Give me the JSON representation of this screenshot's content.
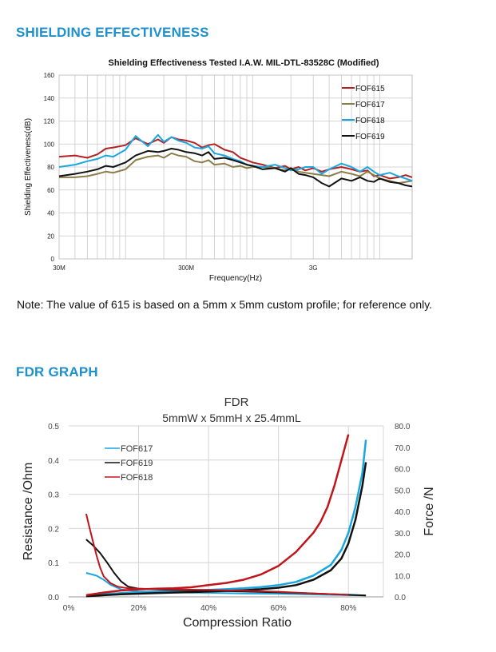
{
  "sections": {
    "shielding_heading": "SHIELDING EFFECTIVENESS",
    "note": "Note: The value of 615 is based on a 5mm x 5mm custom profile; for reference only.",
    "fdr_heading": "FDR GRAPH"
  },
  "chart_data": [
    {
      "type": "line",
      "title": "Shielding Effectiveness Tested I.A.W. MIL-DTL-83528C (Modified)",
      "xlabel": "Frequency(Hz)",
      "ylabel": "Shielding Effectiveness(dB)",
      "xscale": "log",
      "xlim": [
        30000000,
        18000000000
      ],
      "ylim": [
        0,
        160
      ],
      "xticks": [
        {
          "value": 30000000,
          "label": "30M"
        },
        {
          "value": 300000000,
          "label": "300M"
        },
        {
          "value": 3000000000,
          "label": "3G"
        }
      ],
      "yticks": [
        0,
        20,
        40,
        60,
        80,
        100,
        120,
        140,
        160
      ],
      "grid": true,
      "legend_position": "top-right",
      "series": [
        {
          "name": "FOF615",
          "color": "#b22222",
          "x": [
            30,
            40,
            50,
            60,
            70,
            80,
            100,
            120,
            150,
            180,
            200,
            230,
            260,
            300,
            350,
            400,
            450,
            500,
            600,
            700,
            800,
            900,
            1000,
            1200,
            1500,
            1800,
            2000,
            2300,
            2600,
            3000,
            3500,
            4000,
            5000,
            6000,
            7000,
            8000,
            9000,
            10000,
            12000,
            14000,
            16000,
            18000
          ],
          "y": [
            89,
            90,
            88,
            91,
            96,
            97,
            99,
            105,
            100,
            104,
            101,
            106,
            104,
            103,
            101,
            97,
            99,
            100,
            95,
            93,
            88,
            86,
            84,
            82,
            79,
            81,
            78,
            80,
            77,
            79,
            76,
            78,
            80,
            78,
            76,
            77,
            72,
            73,
            70,
            71,
            73,
            71
          ]
        },
        {
          "name": "FOF617",
          "color": "#8b7d4a",
          "x": [
            30,
            40,
            50,
            60,
            70,
            80,
            100,
            120,
            150,
            180,
            200,
            230,
            260,
            300,
            350,
            400,
            450,
            500,
            600,
            700,
            800,
            900,
            1000,
            1200,
            1500,
            1800,
            2000,
            2300,
            2600,
            3000,
            3500,
            4000,
            5000,
            6000,
            7000,
            8000,
            9000,
            10000,
            12000,
            14000,
            16000,
            18000
          ],
          "y": [
            71,
            71,
            72,
            74,
            76,
            75,
            78,
            86,
            89,
            90,
            88,
            92,
            90,
            89,
            85,
            84,
            86,
            82,
            83,
            80,
            81,
            79,
            80,
            80,
            79,
            77,
            79,
            76,
            75,
            74,
            73,
            72,
            76,
            74,
            72,
            76,
            73,
            70,
            68,
            66,
            67,
            68
          ]
        },
        {
          "name": "FOF618",
          "color": "#1aa7e0",
          "x": [
            30,
            40,
            50,
            60,
            70,
            80,
            100,
            120,
            150,
            180,
            200,
            230,
            260,
            300,
            350,
            400,
            450,
            500,
            600,
            700,
            800,
            900,
            1000,
            1200,
            1500,
            1800,
            2000,
            2300,
            2600,
            3000,
            3500,
            4000,
            5000,
            6000,
            7000,
            8000,
            9000,
            10000,
            12000,
            14000,
            16000,
            18000
          ],
          "y": [
            80,
            82,
            85,
            87,
            90,
            89,
            95,
            107,
            98,
            108,
            102,
            106,
            103,
            101,
            97,
            96,
            98,
            92,
            90,
            87,
            85,
            82,
            81,
            80,
            82,
            79,
            77,
            78,
            80,
            80,
            74,
            78,
            83,
            80,
            76,
            80,
            76,
            73,
            75,
            72,
            70,
            68
          ]
        },
        {
          "name": "FOF619",
          "color": "#111111",
          "x": [
            30,
            40,
            50,
            60,
            70,
            80,
            100,
            120,
            150,
            180,
            200,
            230,
            260,
            300,
            350,
            400,
            450,
            500,
            600,
            700,
            800,
            900,
            1000,
            1200,
            1500,
            1800,
            2000,
            2300,
            2600,
            3000,
            3500,
            4000,
            5000,
            6000,
            7000,
            8000,
            9000,
            10000,
            12000,
            14000,
            16000,
            18000
          ],
          "y": [
            72,
            74,
            76,
            78,
            81,
            80,
            84,
            90,
            94,
            93,
            94,
            96,
            95,
            93,
            92,
            90,
            93,
            87,
            88,
            86,
            84,
            82,
            81,
            78,
            79,
            76,
            79,
            74,
            73,
            71,
            66,
            63,
            70,
            68,
            71,
            68,
            67,
            70,
            67,
            66,
            64,
            63
          ]
        }
      ]
    },
    {
      "type": "line",
      "title": "FDR",
      "subtitle": "5mmW x 5mmH x 25.4mmL",
      "xlabel": "Compression Ratio",
      "ylabel": "Resistance /Ohm",
      "y2label": "Force /N",
      "xlim": [
        0,
        0.9
      ],
      "ylim": [
        0,
        0.5
      ],
      "y2lim": [
        0,
        80
      ],
      "xticks": [
        {
          "value": 0,
          "label": "0%"
        },
        {
          "value": 0.2,
          "label": "20%"
        },
        {
          "value": 0.4,
          "label": "40%"
        },
        {
          "value": 0.6,
          "label": "60%"
        },
        {
          "value": 0.8,
          "label": "80%"
        }
      ],
      "yticks": [
        {
          "value": 0,
          "label": "0.0"
        },
        {
          "value": 0.1,
          "label": "0.1"
        },
        {
          "value": 0.2,
          "label": "0.2"
        },
        {
          "value": 0.3,
          "label": "0.3"
        },
        {
          "value": 0.4,
          "label": "0.4"
        },
        {
          "value": 0.5,
          "label": "0.5"
        }
      ],
      "y2ticks": [
        {
          "value": 0,
          "label": "0.0"
        },
        {
          "value": 10,
          "label": "10.0"
        },
        {
          "value": 20,
          "label": "20.0"
        },
        {
          "value": 30,
          "label": "30.0"
        },
        {
          "value": 40,
          "label": "40.0"
        },
        {
          "value": 50,
          "label": "50.0"
        },
        {
          "value": 60,
          "label": "60.0"
        },
        {
          "value": 70,
          "label": "70.0"
        },
        {
          "value": 80,
          "label": "80.0"
        }
      ],
      "grid": true,
      "legend_position": "top-left",
      "series": [
        {
          "name": "FOF617",
          "color": "#1aa7e0",
          "resistance": {
            "x": [
              0.05,
              0.08,
              0.1,
              0.12,
              0.15,
              0.2,
              0.3,
              0.4,
              0.5,
              0.6,
              0.7,
              0.8,
              0.85
            ],
            "y": [
              0.07,
              0.062,
              0.05,
              0.035,
              0.022,
              0.016,
              0.013,
              0.012,
              0.01,
              0.009,
              0.007,
              0.005,
              0.004
            ]
          },
          "force": {
            "x": [
              0.05,
              0.1,
              0.15,
              0.2,
              0.25,
              0.3,
              0.35,
              0.4,
              0.45,
              0.5,
              0.55,
              0.6,
              0.65,
              0.7,
              0.75,
              0.78,
              0.8,
              0.82,
              0.84,
              0.85
            ],
            "y": [
              0.5,
              1.2,
              1.8,
              2.2,
              2.5,
              2.8,
              3.0,
              3.3,
              3.6,
              4.0,
              4.6,
              5.5,
              7.0,
              10.0,
              15.0,
              22.0,
              30.0,
              42.0,
              58.0,
              73.5
            ]
          }
        },
        {
          "name": "FOF619",
          "color": "#111111",
          "resistance": {
            "x": [
              0.05,
              0.07,
              0.09,
              0.11,
              0.13,
              0.15,
              0.17,
              0.2,
              0.3,
              0.4,
              0.5,
              0.6,
              0.7,
              0.8,
              0.85
            ],
            "y": [
              0.168,
              0.15,
              0.128,
              0.1,
              0.07,
              0.045,
              0.03,
              0.024,
              0.02,
              0.018,
              0.016,
              0.013,
              0.01,
              0.006,
              0.004
            ]
          },
          "force": {
            "x": [
              0.05,
              0.1,
              0.15,
              0.2,
              0.25,
              0.3,
              0.35,
              0.4,
              0.45,
              0.5,
              0.55,
              0.6,
              0.65,
              0.7,
              0.75,
              0.78,
              0.8,
              0.82,
              0.84,
              0.85
            ],
            "y": [
              0.3,
              0.8,
              1.2,
              1.5,
              1.8,
              2.0,
              2.2,
              2.5,
              2.8,
              3.1,
              3.6,
              4.3,
              5.5,
              8.0,
              12.5,
              18.0,
              25.0,
              36.0,
              52.0,
              63.0
            ]
          }
        },
        {
          "name": "FOF618",
          "color": "#c0161b",
          "resistance": {
            "x": [
              0.05,
              0.06,
              0.07,
              0.08,
              0.09,
              0.1,
              0.12,
              0.14,
              0.17,
              0.2,
              0.3,
              0.4,
              0.5,
              0.6,
              0.7,
              0.8
            ],
            "y": [
              0.243,
              0.2,
              0.16,
              0.12,
              0.085,
              0.06,
              0.04,
              0.03,
              0.025,
              0.024,
              0.022,
              0.02,
              0.018,
              0.015,
              0.01,
              0.006
            ]
          },
          "force": {
            "x": [
              0.05,
              0.1,
              0.15,
              0.2,
              0.25,
              0.3,
              0.35,
              0.4,
              0.45,
              0.5,
              0.55,
              0.6,
              0.65,
              0.7,
              0.72,
              0.74,
              0.76,
              0.78,
              0.8
            ],
            "y": [
              0.8,
              2.0,
              3.0,
              3.5,
              3.8,
              4.0,
              4.5,
              5.5,
              6.5,
              8.0,
              10.5,
              14.5,
              21.0,
              30.0,
              35.0,
              42.0,
              52.0,
              64.0,
              76.0
            ]
          }
        }
      ]
    }
  ]
}
